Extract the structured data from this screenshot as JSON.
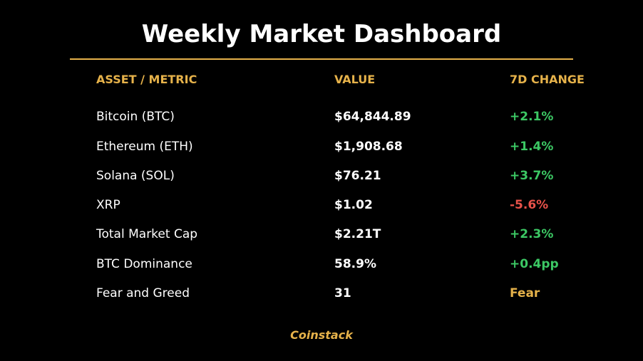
{
  "title": "Weekly Market Dashboard",
  "headers": {
    "asset": "ASSET / METRIC",
    "value": "VALUE",
    "change": "7D CHANGE"
  },
  "rows": [
    {
      "name": "Bitcoin (BTC)",
      "value": "$64,844.89",
      "change": "+2.1%",
      "change_color": "#3cc864"
    },
    {
      "name": "Ethereum (ETH)",
      "value": "$1,908.68",
      "change": "+1.4%",
      "change_color": "#3cc864"
    },
    {
      "name": "Solana (SOL)",
      "value": "$76.21",
      "change": "+3.7%",
      "change_color": "#3cc864"
    },
    {
      "name": "XRP",
      "value": "$1.02",
      "change": "-5.6%",
      "change_color": "#e8524a"
    },
    {
      "name": "Total Market Cap",
      "value": "$2.21T",
      "change": "+2.3%",
      "change_color": "#3cc864"
    },
    {
      "name": "BTC Dominance",
      "value": "58.9%",
      "change": "+0.4pp",
      "change_color": "#3cc864"
    },
    {
      "name": "Fear and Greed",
      "value": "31",
      "change": "Fear",
      "change_color": "#e6b24a"
    }
  ],
  "footer": "Coinstack",
  "colors": {
    "accent": "#e6b24a",
    "positive": "#3cc864",
    "negative": "#e8524a",
    "background": "#000000",
    "text": "#ffffff"
  }
}
